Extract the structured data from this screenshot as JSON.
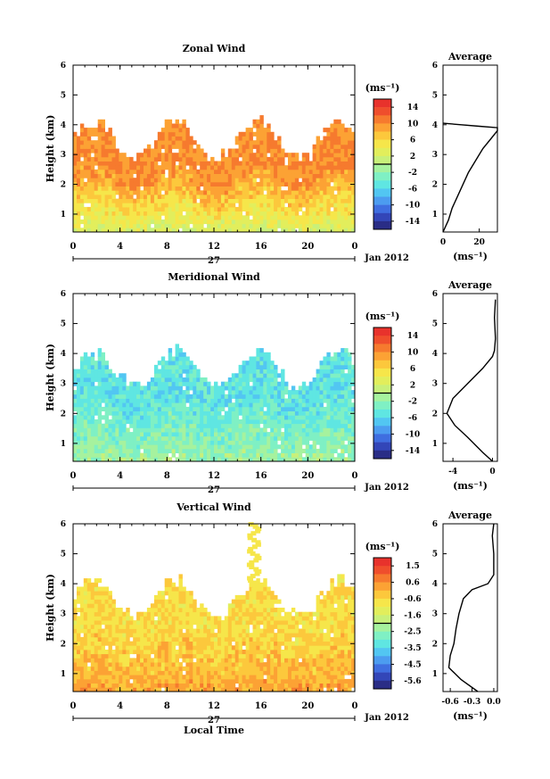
{
  "figure": {
    "ylabel": "Height (km)",
    "unit_label": "(ms⁻¹)",
    "avg_xlabel": "(ms⁻¹)",
    "avg_title": "Average",
    "date_label": "Jan 2012",
    "day_label": "27",
    "xlabel": "Local Time"
  },
  "chart_data": [
    {
      "type": "heatmap",
      "title": "Zonal Wind",
      "x_ticks": [
        "0",
        "4",
        "8",
        "12",
        "16",
        "20",
        "0"
      ],
      "xlim": [
        0,
        24
      ],
      "y_ticks": [
        "1",
        "2",
        "3",
        "4",
        "5",
        "6"
      ],
      "ylim": [
        0.4,
        6
      ],
      "colorbar_ticks": [
        "14",
        "10",
        "6",
        "2",
        "-2",
        "-6",
        "-10",
        "-14"
      ],
      "colorbar_range": [
        -16,
        16
      ],
      "field": {
        "base_value": 10,
        "low_value": 2,
        "top_km": 3.8
      },
      "profile": {
        "x_ticks": [
          "0",
          "20"
        ],
        "xlim": [
          0,
          30
        ],
        "points": [
          [
            0,
            0.4
          ],
          [
            3,
            0.8
          ],
          [
            5,
            1.2
          ],
          [
            8,
            1.6
          ],
          [
            11,
            2.0
          ],
          [
            14,
            2.4
          ],
          [
            18,
            2.8
          ],
          [
            22,
            3.2
          ],
          [
            26,
            3.5
          ],
          [
            30,
            3.8
          ],
          [
            30,
            3.9
          ],
          [
            20,
            3.95
          ],
          [
            10,
            4.0
          ],
          [
            0,
            4.05
          ]
        ]
      }
    },
    {
      "type": "heatmap",
      "title": "Meridional Wind",
      "x_ticks": [
        "0",
        "4",
        "8",
        "12",
        "16",
        "20",
        "0"
      ],
      "xlim": [
        0,
        24
      ],
      "y_ticks": [
        "1",
        "2",
        "3",
        "4",
        "5",
        "6"
      ],
      "ylim": [
        0.4,
        6
      ],
      "colorbar_ticks": [
        "14",
        "10",
        "6",
        "2",
        "-2",
        "-6",
        "-10",
        "-14"
      ],
      "colorbar_range": [
        -16,
        16
      ],
      "field": {
        "base_value": -5,
        "low_value": -1,
        "top_km": 3.8
      },
      "profile": {
        "x_ticks": [
          "-4",
          "0"
        ],
        "xlim": [
          -5,
          0.5
        ],
        "points": [
          [
            0,
            0.4
          ],
          [
            -1,
            0.7
          ],
          [
            -2.5,
            1.2
          ],
          [
            -3.8,
            1.6
          ],
          [
            -4.6,
            2.0
          ],
          [
            -4,
            2.5
          ],
          [
            -2.5,
            3.0
          ],
          [
            -1,
            3.5
          ],
          [
            0,
            3.9
          ],
          [
            0.2,
            4.1
          ],
          [
            0.3,
            4.5
          ],
          [
            0.2,
            5.2
          ],
          [
            0.3,
            5.8
          ]
        ]
      }
    },
    {
      "type": "heatmap",
      "title": "Vertical Wind",
      "x_ticks": [
        "0",
        "4",
        "8",
        "12",
        "16",
        "20",
        "0"
      ],
      "xlim": [
        0,
        24
      ],
      "y_ticks": [
        "1",
        "2",
        "3",
        "4",
        "5",
        "6"
      ],
      "ylim": [
        0.4,
        6
      ],
      "colorbar_ticks": [
        "1.5",
        "0.6",
        "-0.6",
        "-1.6",
        "-2.5",
        "-3.5",
        "-4.5",
        "-5.6"
      ],
      "colorbar_range": [
        -6,
        2
      ],
      "field": {
        "base_value": -0.6,
        "low_value": 0.2,
        "top_km": 3.8
      },
      "profile": {
        "x_ticks": [
          "-0.6",
          "-0.3",
          "0.0"
        ],
        "xlim": [
          -0.7,
          0.05
        ],
        "points": [
          [
            -0.22,
            0.4
          ],
          [
            -0.45,
            0.8
          ],
          [
            -0.62,
            1.2
          ],
          [
            -0.6,
            1.6
          ],
          [
            -0.55,
            2.0
          ],
          [
            -0.52,
            2.5
          ],
          [
            -0.48,
            3.0
          ],
          [
            -0.42,
            3.5
          ],
          [
            -0.3,
            3.8
          ],
          [
            -0.08,
            4.0
          ],
          [
            0.0,
            4.3
          ],
          [
            0.0,
            5.0
          ],
          [
            -0.02,
            5.6
          ],
          [
            0.0,
            6.0
          ]
        ]
      }
    }
  ]
}
